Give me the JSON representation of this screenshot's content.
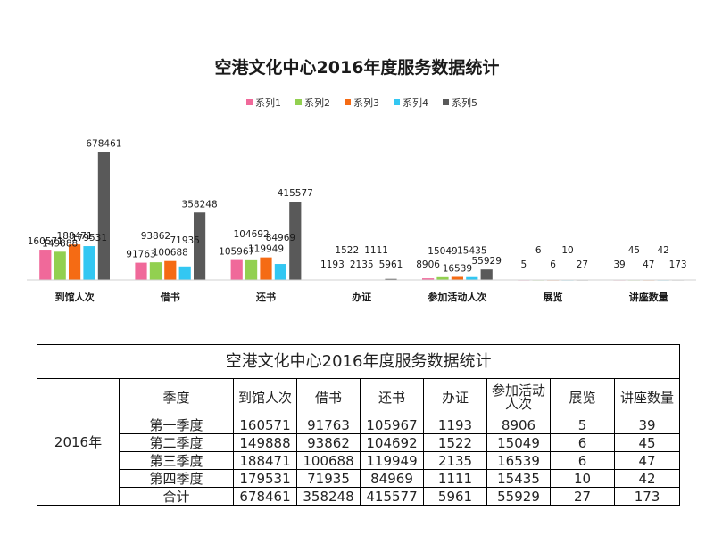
{
  "chart_data": {
    "type": "bar",
    "title": "空港文化中心2016年度服务数据统计",
    "categories": [
      "到馆人次",
      "借书",
      "还书",
      "办证",
      "参加活动人次",
      "展览",
      "讲座数量"
    ],
    "series": [
      {
        "name": "系列1",
        "color": "#f0699a",
        "values": [
          160571,
          91763,
          105967,
          1193,
          8906,
          5,
          39
        ]
      },
      {
        "name": "系列2",
        "color": "#92d050",
        "values": [
          149888,
          93862,
          104692,
          1522,
          15049,
          6,
          45
        ]
      },
      {
        "name": "系列3",
        "color": "#f56b14",
        "values": [
          188471,
          100688,
          119949,
          2135,
          16539,
          6,
          47
        ]
      },
      {
        "name": "系列4",
        "color": "#33c7f2",
        "values": [
          179531,
          71935,
          84969,
          1111,
          15435,
          10,
          42
        ]
      },
      {
        "name": "系列5",
        "color": "#595959",
        "values": [
          678461,
          358248,
          415577,
          5961,
          55929,
          27,
          173
        ]
      }
    ],
    "ylim": [
      0,
      700000
    ],
    "grid": false,
    "legend": "top-center"
  },
  "table": {
    "title": "空港文化中心2016年度服务数据统计",
    "year": "2016年",
    "headers": [
      "季度",
      "到馆人次",
      "借书",
      "还书",
      "办证",
      "参加活动人次",
      "展览",
      "讲座数量"
    ],
    "rows": [
      [
        "第一季度",
        "160571",
        "91763",
        "105967",
        "1193",
        "8906",
        "5",
        "39"
      ],
      [
        "第二季度",
        "149888",
        "93862",
        "104692",
        "1522",
        "15049",
        "6",
        "45"
      ],
      [
        "第三季度",
        "188471",
        "100688",
        "119949",
        "2135",
        "16539",
        "6",
        "47"
      ],
      [
        "第四季度",
        "179531",
        "71935",
        "84969",
        "1111",
        "15435",
        "10",
        "42"
      ],
      [
        "合计",
        "678461",
        "358248",
        "415577",
        "5961",
        "55929",
        "27",
        "173"
      ]
    ]
  }
}
